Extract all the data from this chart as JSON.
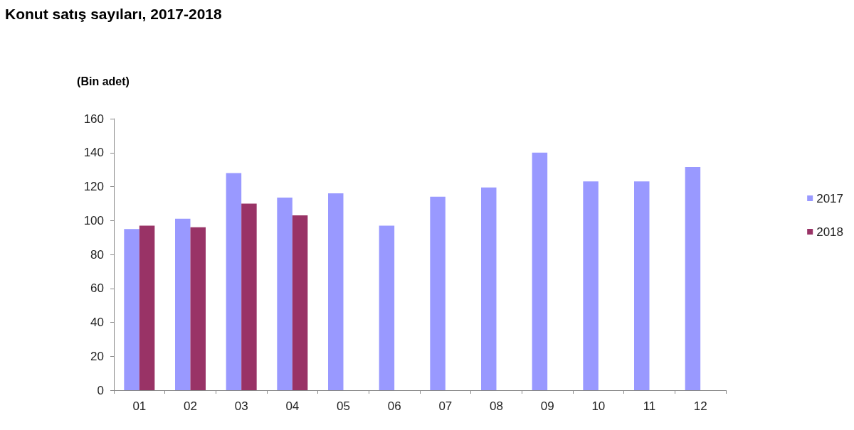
{
  "chart_data": {
    "type": "bar",
    "title": "Konut satış sayıları, 2017-2018",
    "ylabel": "(Bin adet)",
    "categories": [
      "01",
      "02",
      "03",
      "04",
      "05",
      "06",
      "07",
      "08",
      "09",
      "10",
      "11",
      "12"
    ],
    "series": [
      {
        "name": "2017",
        "color": "#9999ff",
        "values": [
          95,
          101,
          128,
          113.5,
          116,
          97,
          114,
          119.5,
          140,
          123,
          123,
          131.5
        ]
      },
      {
        "name": "2018",
        "color": "#993366",
        "values": [
          97,
          96,
          110,
          103,
          null,
          null,
          null,
          null,
          null,
          null,
          null,
          null
        ]
      }
    ],
    "ylim": [
      0,
      160
    ],
    "yticks": [
      0,
      20,
      40,
      60,
      80,
      100,
      120,
      140,
      160
    ],
    "grid": false,
    "legend": "right"
  }
}
